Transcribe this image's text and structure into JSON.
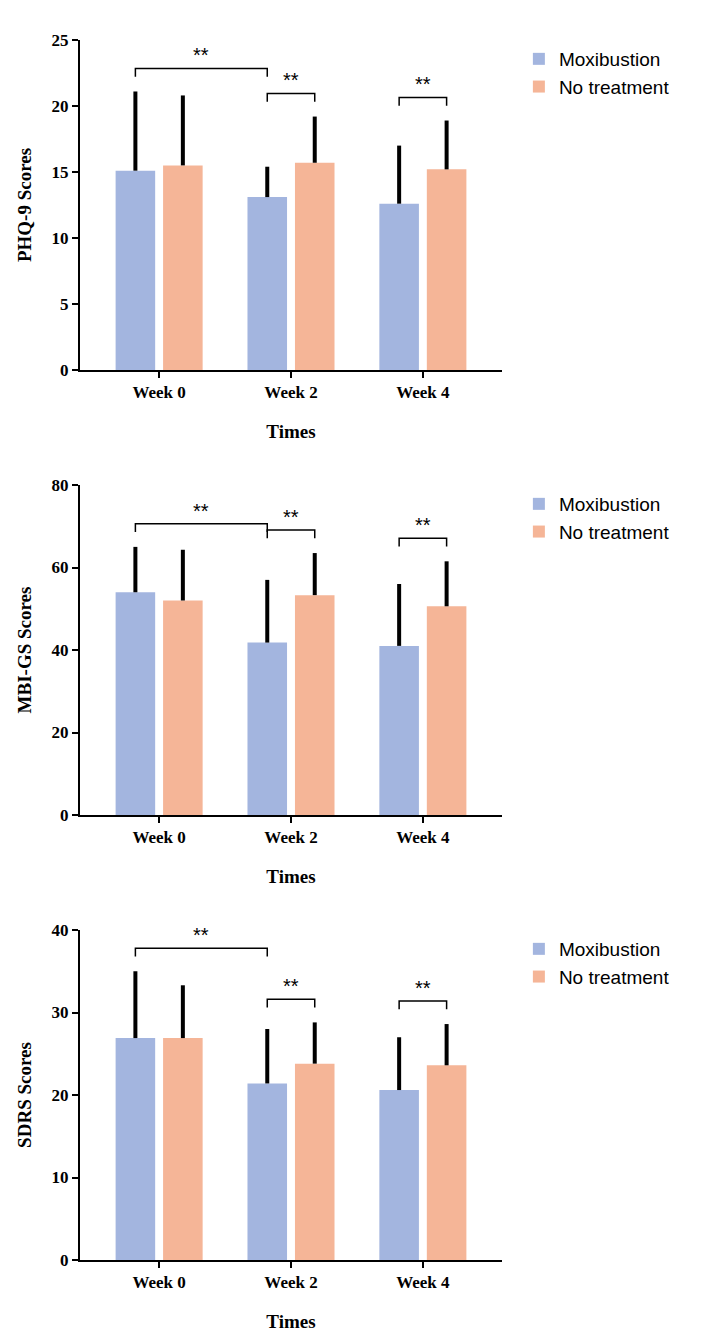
{
  "chart_data": [
    {
      "type": "bar",
      "xlabel": "Times",
      "ylabel": "PHQ-9 Scores",
      "categories": [
        "Week 0",
        "Week 2",
        "Week 4"
      ],
      "series": [
        {
          "name": "Moxibustion",
          "color": "#a3b5df",
          "values": [
            15.1,
            13.1,
            12.6
          ],
          "error": [
            6.0,
            2.3,
            4.4
          ]
        },
        {
          "name": "No treatment",
          "color": "#f5b597",
          "values": [
            15.5,
            15.7,
            15.2
          ],
          "error": [
            5.3,
            3.5,
            3.7
          ]
        }
      ],
      "ylim": [
        0,
        25
      ],
      "yticks": [
        0,
        5,
        10,
        15,
        20,
        25
      ],
      "grid": false,
      "legend": "right",
      "brackets": [
        {
          "from": {
            "category": "Week 0",
            "series": "Moxibustion"
          },
          "to": {
            "category": "Week 2",
            "series": "Moxibustion"
          },
          "label": "**"
        },
        {
          "from": {
            "category": "Week 2",
            "series": "Moxibustion"
          },
          "to": {
            "category": "Week 2",
            "series": "No treatment"
          },
          "label": "**"
        },
        {
          "from": {
            "category": "Week 4",
            "series": "Moxibustion"
          },
          "to": {
            "category": "Week 4",
            "series": "No treatment"
          },
          "label": "**"
        }
      ]
    },
    {
      "type": "bar",
      "xlabel": "Times",
      "ylabel": "MBI-GS Scores",
      "categories": [
        "Week 0",
        "Week 2",
        "Week 4"
      ],
      "series": [
        {
          "name": "Moxibustion",
          "color": "#a3b5df",
          "values": [
            54.0,
            41.8,
            41.0
          ],
          "error": [
            11.0,
            15.2,
            15.0
          ]
        },
        {
          "name": "No treatment",
          "color": "#f5b597",
          "values": [
            52.0,
            53.3,
            50.6
          ],
          "error": [
            12.3,
            10.2,
            10.9
          ]
        }
      ],
      "ylim": [
        0,
        80
      ],
      "yticks": [
        0,
        20,
        40,
        60,
        80
      ],
      "grid": false,
      "legend": "right",
      "brackets": [
        {
          "from": {
            "category": "Week 0",
            "series": "Moxibustion"
          },
          "to": {
            "category": "Week 2",
            "series": "Moxibustion"
          },
          "label": "**"
        },
        {
          "from": {
            "category": "Week 2",
            "series": "Moxibustion"
          },
          "to": {
            "category": "Week 2",
            "series": "No treatment"
          },
          "label": "**"
        },
        {
          "from": {
            "category": "Week 4",
            "series": "Moxibustion"
          },
          "to": {
            "category": "Week 4",
            "series": "No treatment"
          },
          "label": "**"
        }
      ]
    },
    {
      "type": "bar",
      "xlabel": "Times",
      "ylabel": "SDRS Scores",
      "categories": [
        "Week 0",
        "Week 2",
        "Week 4"
      ],
      "series": [
        {
          "name": "Moxibustion",
          "color": "#a3b5df",
          "values": [
            26.9,
            21.4,
            20.6
          ],
          "error": [
            8.1,
            6.6,
            6.4
          ]
        },
        {
          "name": "No treatment",
          "color": "#f5b597",
          "values": [
            26.9,
            23.8,
            23.6
          ],
          "error": [
            6.4,
            5.0,
            5.0
          ]
        }
      ],
      "ylim": [
        0,
        40
      ],
      "yticks": [
        0,
        10,
        20,
        30,
        40
      ],
      "grid": false,
      "legend": "right",
      "brackets": [
        {
          "from": {
            "category": "Week 0",
            "series": "Moxibustion"
          },
          "to": {
            "category": "Week 2",
            "series": "Moxibustion"
          },
          "label": "**"
        },
        {
          "from": {
            "category": "Week 2",
            "series": "Moxibustion"
          },
          "to": {
            "category": "Week 2",
            "series": "No treatment"
          },
          "label": "**"
        },
        {
          "from": {
            "category": "Week 4",
            "series": "Moxibustion"
          },
          "to": {
            "category": "Week 4",
            "series": "No treatment"
          },
          "label": "**"
        }
      ]
    }
  ]
}
